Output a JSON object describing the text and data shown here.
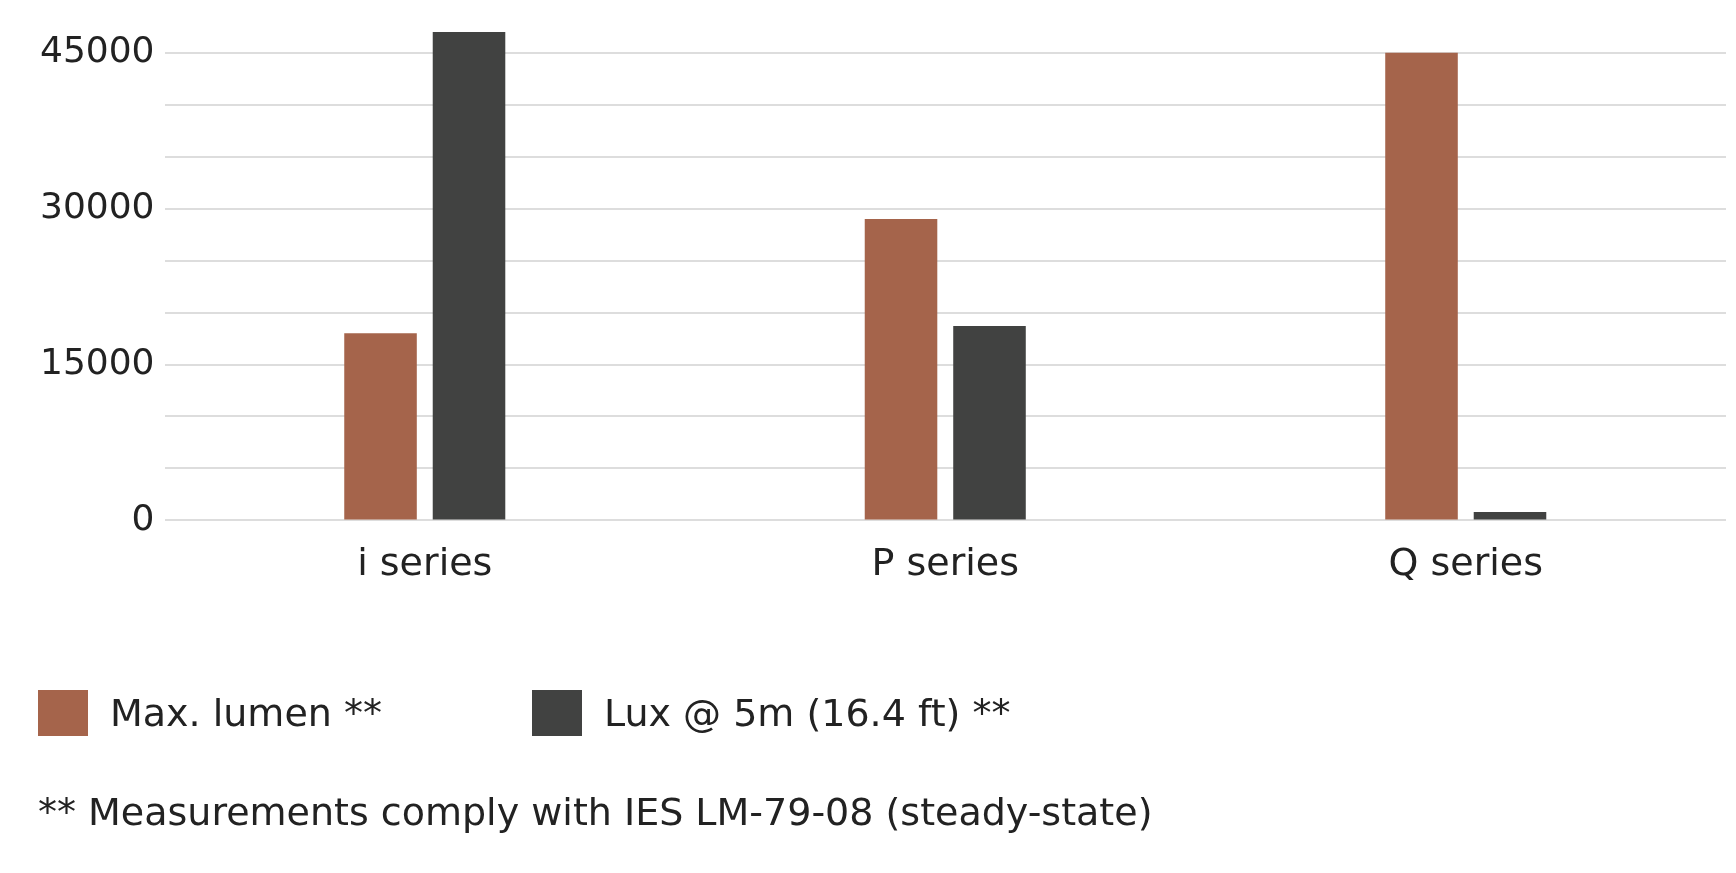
{
  "chart_data": {
    "type": "bar",
    "categories": [
      "i series",
      "P series",
      "Q series"
    ],
    "series": [
      {
        "name": "Max. lumen **",
        "color": "#a5644b",
        "values": [
          18000,
          29000,
          45000
        ]
      },
      {
        "name": "Lux @ 5m (16.4 ft) **",
        "color": "#414241",
        "values": [
          47000,
          18700,
          800
        ]
      }
    ],
    "ylim": [
      0,
      47000
    ],
    "yticks": [
      0,
      {
        "value": 5000,
        "label": null
      },
      {
        "value": 10000,
        "label": null
      },
      15000,
      {
        "value": 20000,
        "label": null
      },
      {
        "value": 25000,
        "label": null
      },
      30000,
      {
        "value": 35000,
        "label": null
      },
      {
        "value": 40000,
        "label": null
      },
      45000
    ],
    "grid": "y",
    "legend": "bottom left",
    "annotations": [
      "**  Measurements comply with IES LM-79-08 (steady-state)"
    ]
  }
}
